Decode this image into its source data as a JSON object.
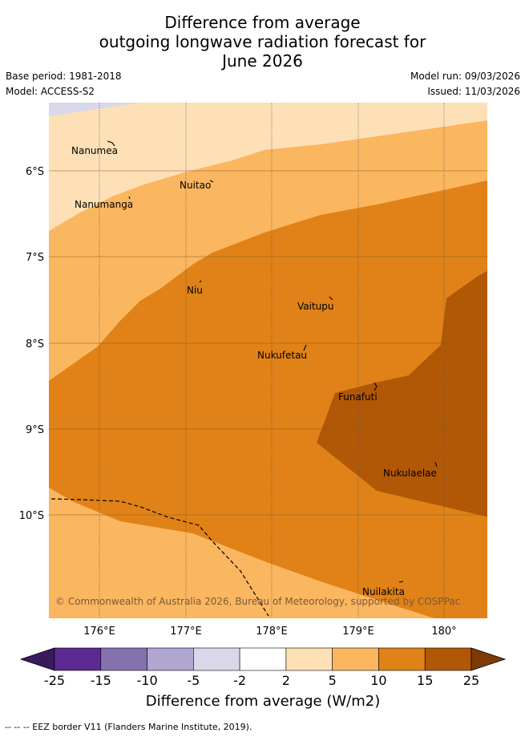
{
  "title": {
    "line1": "Difference from average",
    "line2": "outgoing longwave radiation forecast for",
    "line3": "June 2026"
  },
  "meta": {
    "base_period": "Base period: 1981-2018",
    "model": "Model: ACCESS-S2",
    "model_run": "Model run: 09/03/2026",
    "issued": "Issued: 11/03/2026"
  },
  "map": {
    "lat_labels": [
      "6°S",
      "7°S",
      "8°S",
      "9°S",
      "10°S"
    ],
    "lon_labels": [
      "176°E",
      "177°E",
      "178°E",
      "179°E",
      "180°"
    ],
    "islands": [
      {
        "name": "Nanumea"
      },
      {
        "name": "Nuitao"
      },
      {
        "name": "Nanumanga"
      },
      {
        "name": "Niu"
      },
      {
        "name": "Vaitupu"
      },
      {
        "name": "Nukufetau"
      },
      {
        "name": "Funafuti"
      },
      {
        "name": "Nukulaelae"
      },
      {
        "name": "Nuilakita"
      }
    ],
    "copyright": "© Commonwealth of Australia 2026, Bureau of Meteorology, supported by COSPPac"
  },
  "colorbar": {
    "ticks": [
      "-25",
      "-15",
      "-10",
      "-5",
      "-2",
      "2",
      "5",
      "10",
      "15",
      "25"
    ],
    "colors": [
      "#3a1a5e",
      "#5c2a91",
      "#8572ad",
      "#b0a6d0",
      "#d8d8ea",
      "#ffffff",
      "#fde0b5",
      "#fbb660",
      "#e08217",
      "#b15807",
      "#7e3b06"
    ],
    "label": "Difference from average (W/m2)"
  },
  "footer": "--  --  -- EEZ border V11 (Flanders Marine Institute, 2019)."
}
